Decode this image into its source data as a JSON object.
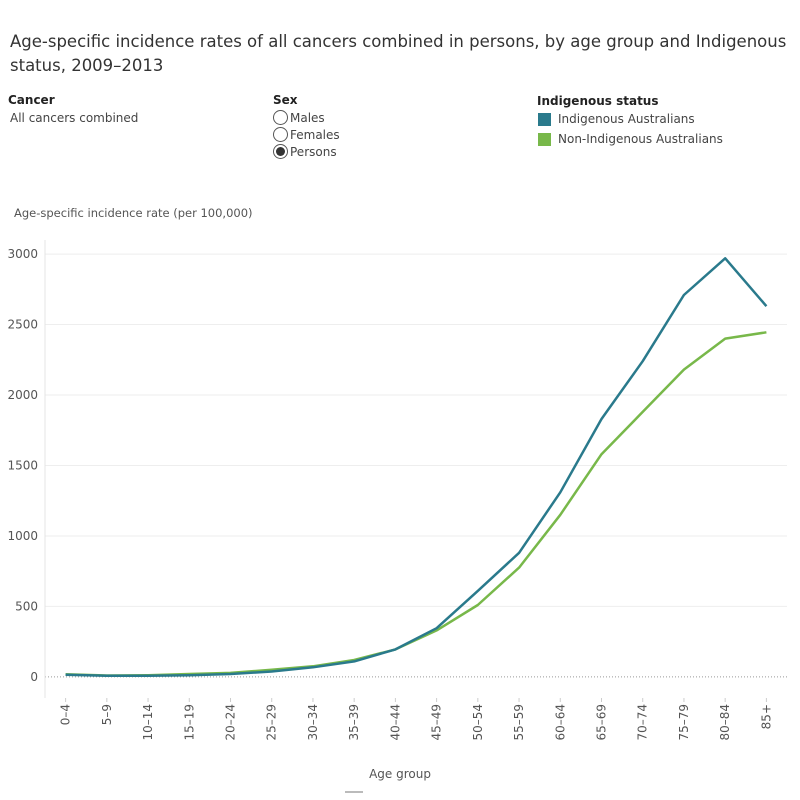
{
  "controls": {
    "cancer": {
      "label": "Cancer",
      "value": "All cancers combined"
    },
    "sex": {
      "label": "Sex",
      "options": [
        "Males",
        "Females",
        "Persons"
      ],
      "selected": "Persons"
    }
  },
  "chart_data": {
    "type": "line",
    "title": "Age-specific incidence rates of all cancers combined in persons, by age group and Indigenous status, 2009–2013",
    "legend_title": "Indigenous status",
    "y_label": "Age-specific incidence rate (per 100,000)",
    "x_label": "Age group",
    "categories": [
      "0–4",
      "5–9",
      "10–14",
      "15–19",
      "20–24",
      "25–29",
      "30–34",
      "35–39",
      "40–44",
      "45–49",
      "50–54",
      "55–59",
      "60–64",
      "65–69",
      "70–74",
      "75–79",
      "80–84",
      "85+"
    ],
    "series": [
      {
        "name": "Indigenous Australians",
        "color": "#2a7a8c",
        "values": [
          15,
          8,
          8,
          12,
          20,
          38,
          68,
          110,
          195,
          345,
          610,
          880,
          1310,
          1830,
          2240,
          2710,
          2970,
          2630
        ]
      },
      {
        "name": "Non-Indigenous Australians",
        "color": "#78b84a",
        "values": [
          18,
          10,
          12,
          20,
          28,
          50,
          75,
          120,
          195,
          330,
          510,
          775,
          1150,
          1580,
          1880,
          2180,
          2400,
          2445
        ]
      }
    ],
    "ylim": [
      -150,
      3100
    ],
    "yticks": [
      0,
      500,
      1000,
      1500,
      2000,
      2500,
      3000
    ],
    "grid": true
  }
}
